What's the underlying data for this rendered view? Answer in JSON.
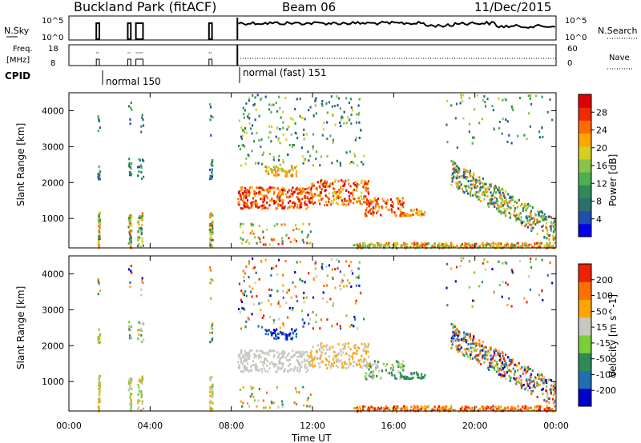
{
  "header": {
    "site": "Buckland Park (fitACF)",
    "beam": "Beam 06",
    "date": "11/Dec/2015"
  },
  "top_panels": {
    "nsky_label": "N.Sky",
    "nsky_ticks": [
      "10^5",
      "10^0"
    ],
    "nsearch_label": "N.Search",
    "nsearch_ticks": [
      "10^5",
      "10^0"
    ],
    "freq_label_line1": "Freq.",
    "freq_label_line2": "[MHz]",
    "freq_ticks": [
      "18",
      "8"
    ],
    "nave_label": "Nave",
    "nave_ticks": [
      "60",
      "0"
    ],
    "cpid_label": "CPID",
    "cpid_modes": [
      {
        "label": "normal 150",
        "start_hour": 1.4
      },
      {
        "label": "normal (fast) 151",
        "start_hour": 8.3
      }
    ]
  },
  "chart_data": [
    {
      "type": "heatmap",
      "title": "Power [dB]",
      "ylabel": "Slant Range [km]",
      "xlabel": "Time UT",
      "xlim": [
        0,
        24
      ],
      "ylim": [
        180,
        4500
      ],
      "x_ticks": [
        "00:00",
        "04:00",
        "08:00",
        "12:00",
        "16:00",
        "20:00",
        "00:00"
      ],
      "y_ticks": [
        1000,
        2000,
        3000,
        4000
      ],
      "colorbar_label": "Power [dB]",
      "colorbar_ticks": [
        "28",
        "24",
        "20",
        "16",
        "12",
        "8",
        "4"
      ],
      "colorbar_range": [
        0,
        30
      ],
      "colors": [
        "#0000ee",
        "#1e4fb0",
        "#2d6e6e",
        "#2e8b57",
        "#4caf50",
        "#8bc34a",
        "#d4d020",
        "#ffa500",
        "#ff6a00",
        "#ee2a00",
        "#dd0000"
      ]
    },
    {
      "type": "heatmap",
      "title": "Velocity [m s-1]",
      "ylabel": "Slant Range [km]",
      "xlabel": "Time UT",
      "xlim": [
        0,
        24
      ],
      "ylim": [
        180,
        4500
      ],
      "x_ticks": [
        "00:00",
        "04:00",
        "08:00",
        "12:00",
        "16:00",
        "20:00",
        "00:00"
      ],
      "y_ticks": [
        1000,
        2000,
        3000,
        4000
      ],
      "colorbar_label": "Velocity [m s^-1]",
      "colorbar_ticks": [
        "200",
        "100",
        "50",
        "15",
        "-15",
        "-50",
        "-100",
        "-200"
      ],
      "colors": [
        "#0000cc",
        "#1f6fb5",
        "#2e8b57",
        "#7ccd3a",
        "#c8c8c0",
        "#ffa500",
        "#ff7000",
        "#ee2200"
      ]
    }
  ]
}
